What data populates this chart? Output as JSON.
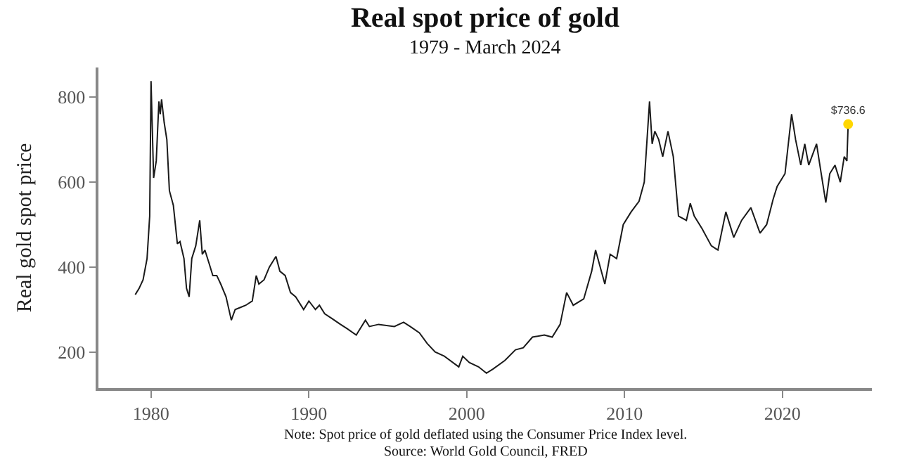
{
  "chart_data": {
    "type": "line",
    "title": "Real spot price of gold",
    "subtitle": "1979 - March 2024",
    "ylabel": "Real gold spot price",
    "annotations": [
      "Note: Spot price of gold deflated using the Consumer Price Index level.",
      "Source: World Gold Council, FRED"
    ],
    "series": [
      {
        "color": "#1a1a1a",
        "x": [
          "1979-01",
          "1979-04",
          "1979-07",
          "1979-10",
          "1979-12",
          "1980-01",
          "1980-02",
          "1980-03",
          "1980-05",
          "1980-07",
          "1980-08",
          "1980-09",
          "1980-11",
          "1981-01",
          "1981-03",
          "1981-06",
          "1981-09",
          "1981-11",
          "1982-02",
          "1982-04",
          "1982-06",
          "1982-08",
          "1982-11",
          "1983-02",
          "1983-04",
          "1983-06",
          "1983-09",
          "1983-12",
          "1984-03",
          "1984-06",
          "1984-10",
          "1985-02",
          "1985-05",
          "1985-09",
          "1986-01",
          "1986-06",
          "1986-09",
          "1986-11",
          "1987-03",
          "1987-07",
          "1987-12",
          "1988-03",
          "1988-07",
          "1988-11",
          "1989-03",
          "1989-09",
          "1990-01",
          "1990-06",
          "1990-09",
          "1991-01",
          "1991-06",
          "1992-01",
          "1992-06",
          "1993-01",
          "1993-08",
          "1993-11",
          "1994-06",
          "1995-06",
          "1996-01",
          "1996-06",
          "1997-01",
          "1997-07",
          "1998-01",
          "1998-08",
          "1999-07",
          "1999-10",
          "2000-03",
          "2000-10",
          "2001-04",
          "2001-09",
          "2002-06",
          "2003-02",
          "2003-08",
          "2004-03",
          "2004-12",
          "2005-06",
          "2005-12",
          "2006-05",
          "2006-10",
          "2007-06",
          "2007-12",
          "2008-03",
          "2008-10",
          "2009-02",
          "2009-07",
          "2009-12",
          "2010-06",
          "2010-12",
          "2011-04",
          "2011-08",
          "2011-10",
          "2011-12",
          "2012-03",
          "2012-06",
          "2012-10",
          "2013-02",
          "2013-06",
          "2013-12",
          "2014-03",
          "2014-06",
          "2014-12",
          "2015-07",
          "2015-12",
          "2016-06",
          "2016-12",
          "2017-06",
          "2018-01",
          "2018-08",
          "2019-01",
          "2019-06",
          "2019-09",
          "2020-03",
          "2020-08",
          "2020-11",
          "2021-03",
          "2021-06",
          "2021-09",
          "2022-03",
          "2022-06",
          "2022-10",
          "2023-01",
          "2023-05",
          "2023-09",
          "2023-12",
          "2024-02",
          "2024-03"
        ],
        "values": [
          335,
          350,
          370,
          420,
          520,
          838,
          720,
          610,
          650,
          790,
          760,
          795,
          740,
          700,
          580,
          545,
          455,
          460,
          420,
          350,
          330,
          420,
          450,
          510,
          430,
          440,
          410,
          380,
          380,
          360,
          330,
          275,
          300,
          305,
          310,
          320,
          380,
          360,
          370,
          400,
          425,
          390,
          380,
          340,
          330,
          300,
          320,
          300,
          310,
          290,
          280,
          265,
          255,
          240,
          275,
          260,
          265,
          260,
          270,
          260,
          245,
          220,
          200,
          190,
          165,
          190,
          175,
          165,
          150,
          160,
          180,
          205,
          210,
          235,
          240,
          235,
          265,
          340,
          310,
          325,
          390,
          440,
          360,
          430,
          420,
          500,
          530,
          555,
          600,
          790,
          690,
          720,
          700,
          660,
          720,
          660,
          520,
          510,
          550,
          520,
          490,
          450,
          440,
          530,
          470,
          510,
          540,
          480,
          500,
          560,
          590,
          620,
          760,
          700,
          640,
          690,
          640,
          690,
          630,
          552,
          620,
          640,
          600,
          660,
          650,
          736.6
        ]
      },
      {
        "type": "scatter",
        "color": "#ffd700",
        "x": [
          "2024-03"
        ],
        "values": [
          736.6
        ],
        "value_labels": [
          "$736.6"
        ]
      }
    ],
    "xlim": [
      "1976-09",
      "2025-09"
    ],
    "xticks": [
      "1980",
      "1990",
      "2000",
      "2010",
      "2020"
    ],
    "ylim": [
      115,
      870
    ],
    "yticks": [
      200,
      400,
      600,
      800
    ]
  }
}
